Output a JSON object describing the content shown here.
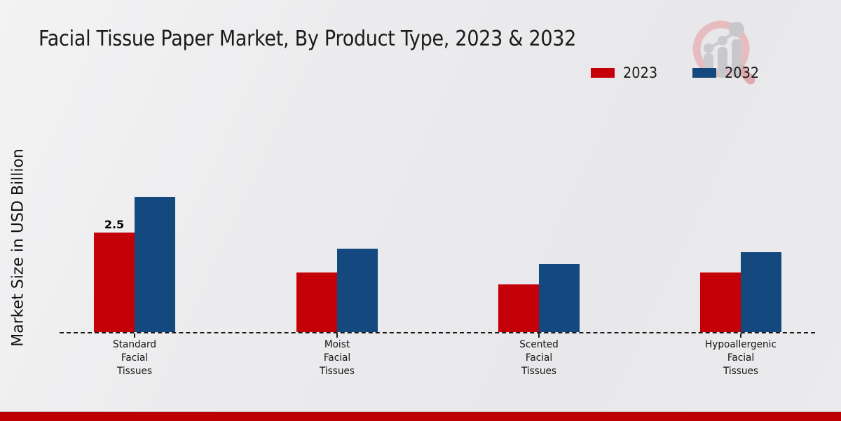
{
  "title": "Facial Tissue Paper Market, By Product Type, 2023 & 2032",
  "ylabel": "Market Size in USD Billion",
  "legend": [
    {
      "label": "2023",
      "color": "#c40008"
    },
    {
      "label": "2032",
      "color": "#14497f"
    }
  ],
  "colors": {
    "series_2023": "#c40008",
    "series_2032": "#14497f",
    "footer_band": "#c00000",
    "baseline": "#1a1a1a",
    "background": "#ebebed",
    "watermark_ring": "#e5b9bc",
    "watermark_bars": "#c9c9cd"
  },
  "watermark_icon": "magnifier-bar-chart-logo",
  "chart_data": {
    "type": "bar",
    "categories": [
      "Standard Facial Tissues",
      "Moist Facial Tissues",
      "Scented Facial Tissues",
      "Hypoallergenic Facial Tissues"
    ],
    "series": [
      {
        "name": "2023",
        "color": "#c40008",
        "values": [
          2.5,
          1.5,
          1.2,
          1.5
        ]
      },
      {
        "name": "2032",
        "color": "#14497f",
        "values": [
          3.4,
          2.1,
          1.7,
          2.0
        ]
      }
    ],
    "title": "Facial Tissue Paper Market, By Product Type, 2023 & 2032",
    "xlabel": "",
    "ylabel": "Market Size in USD Billion",
    "ylim": [
      0,
      5.5
    ],
    "y_axis_ticks_visible": false,
    "grid": false,
    "baseline_style": "dashed",
    "legend_position": "top-right",
    "annotations": [
      {
        "series": "2023",
        "category_index": 0,
        "text": "2.5"
      }
    ]
  }
}
